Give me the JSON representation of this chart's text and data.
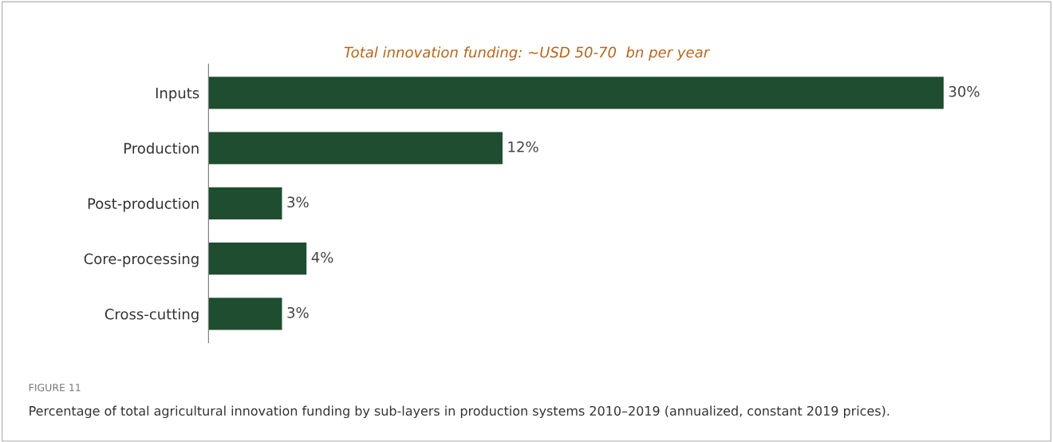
{
  "chart_data": {
    "type": "bar",
    "orientation": "horizontal",
    "title": "Total innovation funding: ~USD 50-70  bn per year",
    "categories": [
      "Inputs",
      "Production",
      "Post-production",
      "Core-processing",
      "Cross-cutting"
    ],
    "values": [
      30,
      12,
      3,
      4,
      3
    ],
    "color": "#1e4d30",
    "value_labels": [
      "30%",
      "12%",
      "3%",
      "4%",
      "3%"
    ],
    "annotations": [
      "FIGURE 11",
      "Percentage of total agricultural innovation funding by sub-layers in production systems 2010–2019 (annualized, constant 2019 prices)."
    ],
    "grid": false,
    "legend": false
  }
}
